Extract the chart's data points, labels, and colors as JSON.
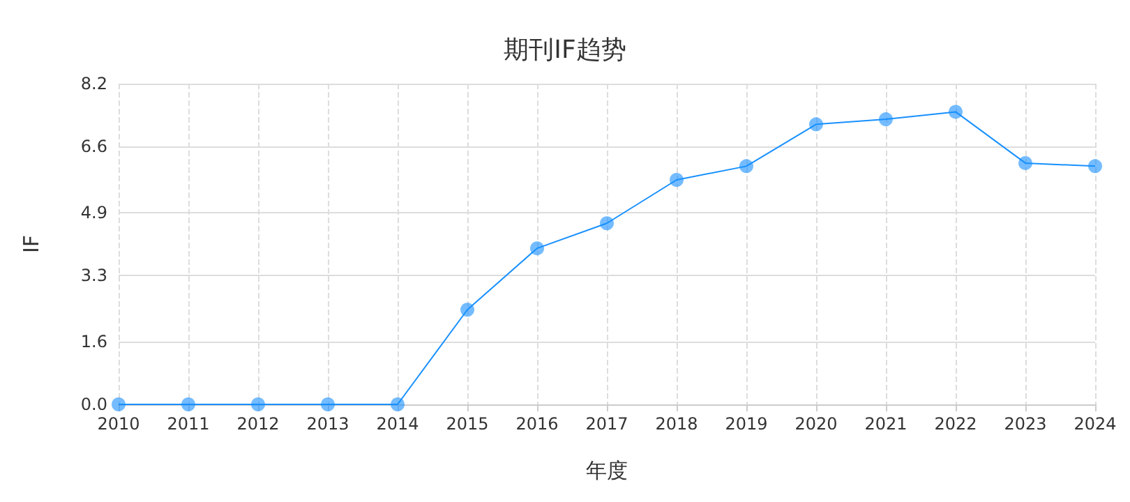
{
  "chart_data": {
    "type": "line",
    "title": "期刊IF趋势",
    "xlabel": "年度",
    "ylabel": "IF",
    "categories": [
      "2010",
      "2011",
      "2012",
      "2013",
      "2014",
      "2015",
      "2016",
      "2017",
      "2018",
      "2019",
      "2020",
      "2021",
      "2022",
      "2023",
      "2024"
    ],
    "series": [
      {
        "color": "#1890ff",
        "values": [
          0,
          0,
          0,
          0,
          0,
          2.42,
          3.99,
          4.63,
          5.74,
          6.09,
          7.16,
          7.29,
          7.48,
          6.17,
          6.09
        ]
      }
    ],
    "ylim": [
      0,
      8.2
    ],
    "yticks": [
      {
        "value": 0,
        "label": "0.0"
      },
      1.6,
      3.3,
      4.9,
      6.6,
      8.2
    ],
    "grid": true,
    "marker": "circle",
    "line_style": "solid"
  }
}
